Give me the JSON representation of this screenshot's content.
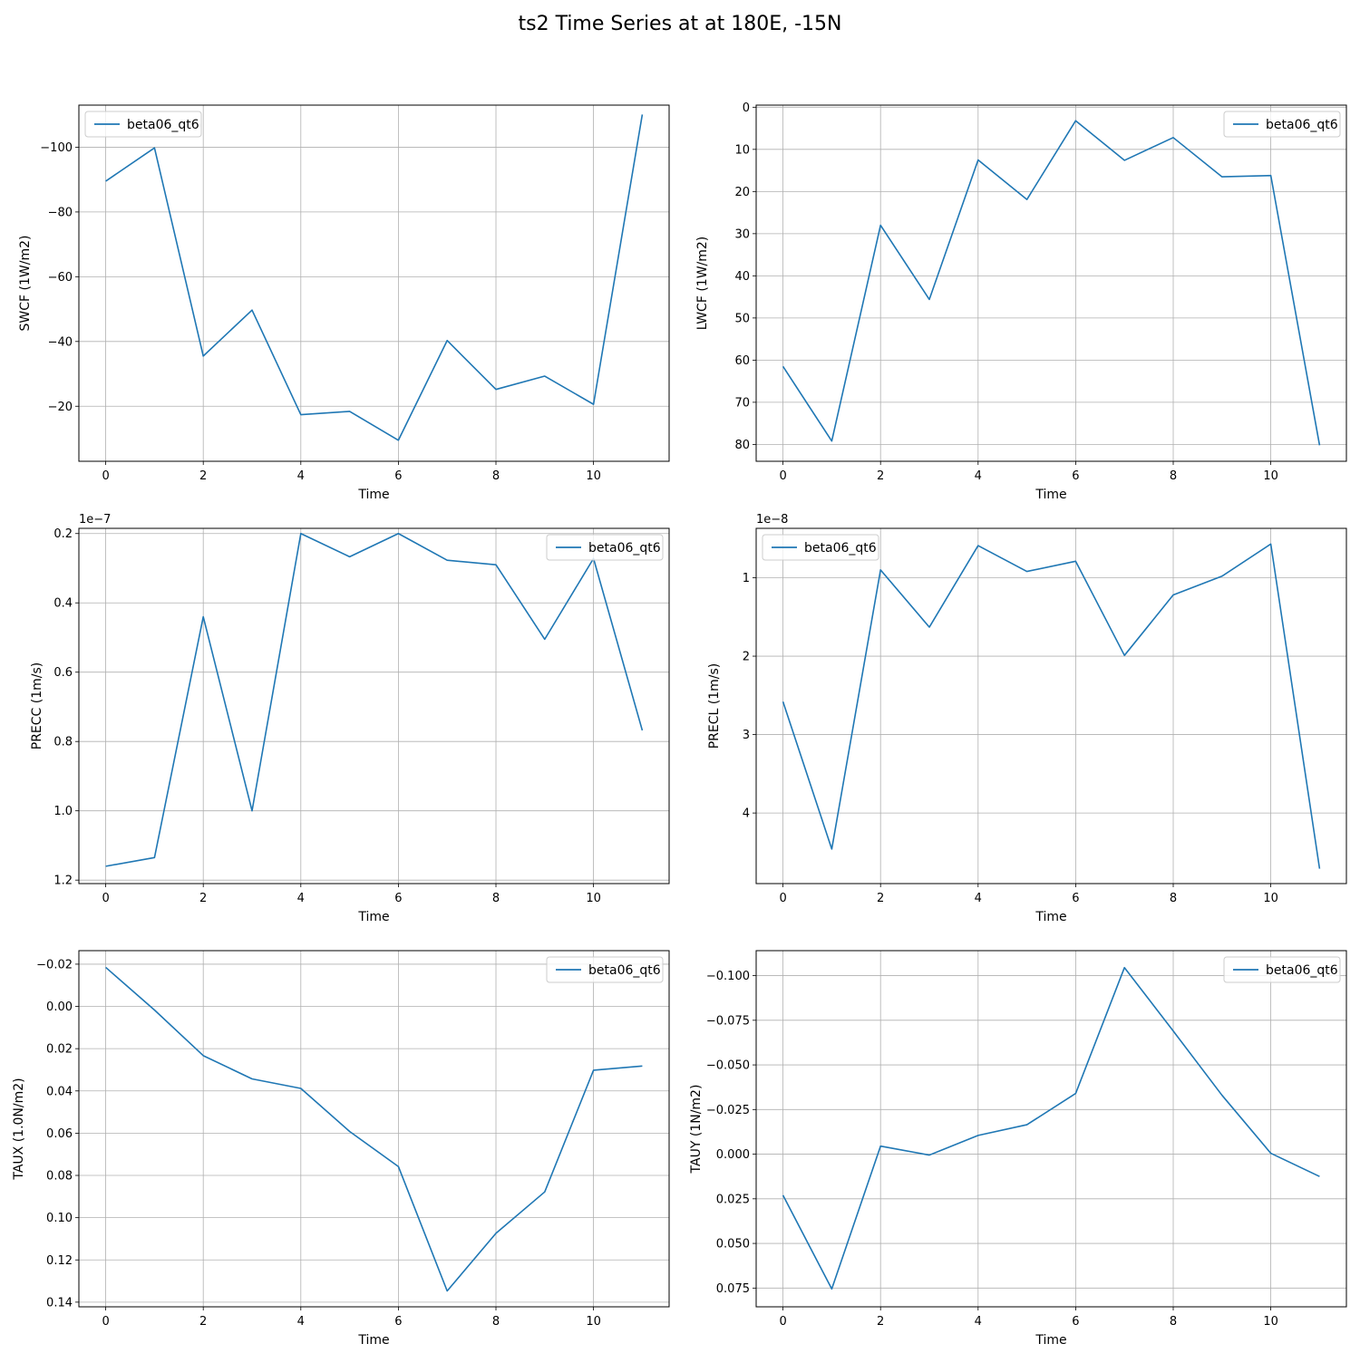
{
  "figure": {
    "title": "ts2 Time Series at at 180E, -15N"
  },
  "chart_data": [
    {
      "type": "line",
      "xlabel": "Time",
      "ylabel": "SWCF (1W/m2)",
      "y_inverted": true,
      "xlim": [
        -0.55,
        11.55
      ],
      "ylim": [
        -113,
        -3
      ],
      "xticks": [
        0,
        2,
        4,
        6,
        8,
        10
      ],
      "xticklabels": [
        "0",
        "2",
        "4",
        "6",
        "8",
        "10"
      ],
      "yticks": [
        -100,
        -80,
        -60,
        -40,
        -20
      ],
      "yticklabels": [
        "−100",
        "−80",
        "−60",
        "−40",
        "−20"
      ],
      "offset_text": "",
      "legend_loc": "upper left",
      "grid": true,
      "x": [
        0,
        1,
        2,
        3,
        4,
        5,
        6,
        7,
        8,
        9,
        10,
        11
      ],
      "series": [
        {
          "name": "beta06_qt6",
          "color": "#1f77b4",
          "values": [
            -89.5,
            -99.8,
            -35.5,
            -49.7,
            -17.4,
            -18.4,
            -9.5,
            -40.3,
            -25.2,
            -29.3,
            -20.6,
            -110.1
          ]
        }
      ]
    },
    {
      "type": "line",
      "xlabel": "Time",
      "ylabel": "LWCF (1W/m2)",
      "y_inverted": true,
      "xlim": [
        -0.55,
        11.55
      ],
      "ylim": [
        -0.5,
        84
      ],
      "xticks": [
        0,
        2,
        4,
        6,
        8,
        10
      ],
      "xticklabels": [
        "0",
        "2",
        "4",
        "6",
        "8",
        "10"
      ],
      "yticks": [
        0,
        10,
        20,
        30,
        40,
        50,
        60,
        70,
        80
      ],
      "yticklabels": [
        "0",
        "10",
        "20",
        "30",
        "40",
        "50",
        "60",
        "70",
        "80"
      ],
      "offset_text": "",
      "legend_loc": "upper right",
      "grid": true,
      "x": [
        0,
        1,
        2,
        3,
        4,
        5,
        6,
        7,
        8,
        9,
        10,
        11
      ],
      "series": [
        {
          "name": "beta06_qt6",
          "color": "#1f77b4",
          "values": [
            61.5,
            79.2,
            28.0,
            45.6,
            12.5,
            21.9,
            3.2,
            12.6,
            7.2,
            16.5,
            16.2,
            80.2
          ]
        }
      ]
    },
    {
      "type": "line",
      "xlabel": "Time",
      "ylabel": "PRECC (1m/s)",
      "y_inverted": true,
      "xlim": [
        -0.55,
        11.55
      ],
      "ylim": [
        0.185,
        1.21
      ],
      "xticks": [
        0,
        2,
        4,
        6,
        8,
        10
      ],
      "xticklabels": [
        "0",
        "2",
        "4",
        "6",
        "8",
        "10"
      ],
      "yticks": [
        0.2,
        0.4,
        0.6,
        0.8,
        1.0,
        1.2
      ],
      "yticklabels": [
        "0.2",
        "0.4",
        "0.6",
        "0.8",
        "1.0",
        "1.2"
      ],
      "offset_text": "1e−7",
      "legend_loc": "upper right",
      "grid": true,
      "x": [
        0,
        1,
        2,
        3,
        4,
        5,
        6,
        7,
        8,
        9,
        10,
        11
      ],
      "series": [
        {
          "name": "beta06_qt6",
          "color": "#1f77b4",
          "values": [
            1.16,
            1.135,
            0.44,
            1.0,
            0.2,
            0.267,
            0.2,
            0.277,
            0.29,
            0.505,
            0.272,
            0.768
          ]
        }
      ]
    },
    {
      "type": "line",
      "xlabel": "Time",
      "ylabel": "PRECL (1m/s)",
      "y_inverted": true,
      "xlim": [
        -0.55,
        11.55
      ],
      "ylim": [
        0.37,
        4.9
      ],
      "xticks": [
        0,
        2,
        4,
        6,
        8,
        10
      ],
      "xticklabels": [
        "0",
        "2",
        "4",
        "6",
        "8",
        "10"
      ],
      "yticks": [
        1,
        2,
        3,
        4
      ],
      "yticklabels": [
        "1",
        "2",
        "3",
        "4"
      ],
      "offset_text": "1e−8",
      "legend_loc": "upper left",
      "grid": true,
      "x": [
        0,
        1,
        2,
        3,
        4,
        5,
        6,
        7,
        8,
        9,
        10,
        11
      ],
      "series": [
        {
          "name": "beta06_qt6",
          "color": "#1f77b4",
          "values": [
            2.58,
            4.46,
            0.9,
            1.63,
            0.59,
            0.92,
            0.79,
            1.99,
            1.22,
            0.98,
            0.57,
            4.71
          ]
        }
      ]
    },
    {
      "type": "line",
      "xlabel": "Time",
      "ylabel": "TAUX (1.0N/m2)",
      "y_inverted": true,
      "xlim": [
        -0.55,
        11.55
      ],
      "ylim": [
        -0.0264,
        0.1422
      ],
      "xticks": [
        0,
        2,
        4,
        6,
        8,
        10
      ],
      "xticklabels": [
        "0",
        "2",
        "4",
        "6",
        "8",
        "10"
      ],
      "yticks": [
        -0.02,
        0.0,
        0.02,
        0.04,
        0.06,
        0.08,
        0.1,
        0.12,
        0.14
      ],
      "yticklabels": [
        "−0.02",
        "0.00",
        "0.02",
        "0.04",
        "0.06",
        "0.08",
        "0.10",
        "0.12",
        "0.14"
      ],
      "offset_text": "",
      "legend_loc": "upper right",
      "grid": true,
      "x": [
        0,
        1,
        2,
        3,
        4,
        5,
        6,
        7,
        8,
        9,
        10,
        11
      ],
      "series": [
        {
          "name": "beta06_qt6",
          "color": "#1f77b4",
          "values": [
            -0.0185,
            0.0017,
            0.0233,
            0.0343,
            0.0388,
            0.0592,
            0.0758,
            0.1347,
            0.1074,
            0.0878,
            0.0302,
            0.0282
          ]
        }
      ]
    },
    {
      "type": "line",
      "xlabel": "Time",
      "ylabel": "TAUY (1N/m2)",
      "y_inverted": true,
      "xlim": [
        -0.55,
        11.55
      ],
      "ylim": [
        -0.114,
        0.0855
      ],
      "xticks": [
        0,
        2,
        4,
        6,
        8,
        10
      ],
      "xticklabels": [
        "0",
        "2",
        "4",
        "6",
        "8",
        "10"
      ],
      "yticks": [
        -0.1,
        -0.075,
        -0.05,
        -0.025,
        0.0,
        0.025,
        0.05,
        0.075
      ],
      "yticklabels": [
        "−0.100",
        "−0.075",
        "−0.050",
        "−0.025",
        "0.000",
        "0.025",
        "0.050",
        "0.075"
      ],
      "offset_text": "",
      "legend_loc": "upper right",
      "grid": true,
      "x": [
        0,
        1,
        2,
        3,
        4,
        5,
        6,
        7,
        8,
        9,
        10,
        11
      ],
      "series": [
        {
          "name": "beta06_qt6",
          "color": "#1f77b4",
          "values": [
            0.023,
            0.0755,
            -0.0045,
            0.0005,
            -0.0105,
            -0.0165,
            -0.034,
            -0.1045,
            -0.069,
            -0.033,
            -0.0005,
            0.0125
          ]
        }
      ]
    }
  ]
}
